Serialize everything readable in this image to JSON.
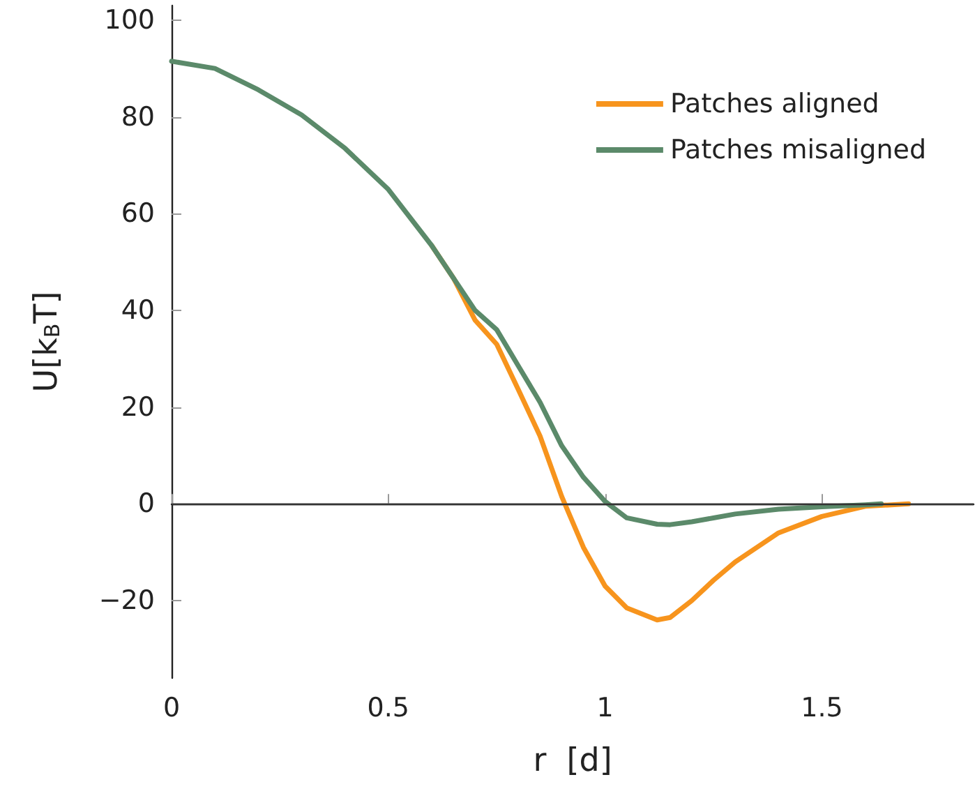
{
  "chart_data": {
    "type": "line",
    "xlabel": "r  [d]",
    "ylabel": "U[k$_{B}$T]",
    "xlim": [
      0,
      1.85
    ],
    "xticks": [
      0,
      0.5,
      1,
      1.5
    ],
    "ylim": [
      -36,
      103
    ],
    "yticks": [
      {
        "value": -20,
        "label": "−20"
      },
      0,
      20,
      40,
      60,
      80,
      100
    ],
    "grid": false,
    "legend": "top right",
    "marker": "none",
    "line_style": "solid",
    "ref_lines": [
      {
        "axis": "y",
        "value": 0,
        "color": "#333333"
      }
    ],
    "series": [
      {
        "name": "Patches aligned",
        "color": "#f7941d",
        "x": [
          0.6,
          0.65,
          0.7,
          0.75,
          0.8,
          0.85,
          0.9,
          0.95,
          1.0,
          1.05,
          1.12,
          1.15,
          1.2,
          1.25,
          1.3,
          1.4,
          1.5,
          1.6,
          1.7
        ],
        "values": [
          53.4,
          46.7,
          38,
          33,
          23.6,
          14,
          1.5,
          -9,
          -17,
          -21.5,
          -24,
          -23.5,
          -20,
          -15.8,
          -12,
          -6,
          -2.6,
          -0.5,
          0
        ]
      },
      {
        "name": "Patches misaligned",
        "color": "#5b8a6a",
        "x": [
          0,
          0.1,
          0.2,
          0.3,
          0.4,
          0.5,
          0.6,
          0.65,
          0.7,
          0.75,
          0.8,
          0.85,
          0.9,
          0.95,
          1.0,
          1.05,
          1.12,
          1.15,
          1.2,
          1.25,
          1.3,
          1.4,
          1.5,
          1.6,
          1.637
        ],
        "values": [
          91.5,
          90,
          85.6,
          80.4,
          73.5,
          65,
          53.4,
          46.7,
          40,
          36,
          28.5,
          21,
          12,
          5.5,
          0.5,
          -2.9,
          -4.2,
          -4.3,
          -3.7,
          -2.9,
          -2.1,
          -1.1,
          -0.6,
          -0.2,
          0
        ]
      }
    ]
  }
}
